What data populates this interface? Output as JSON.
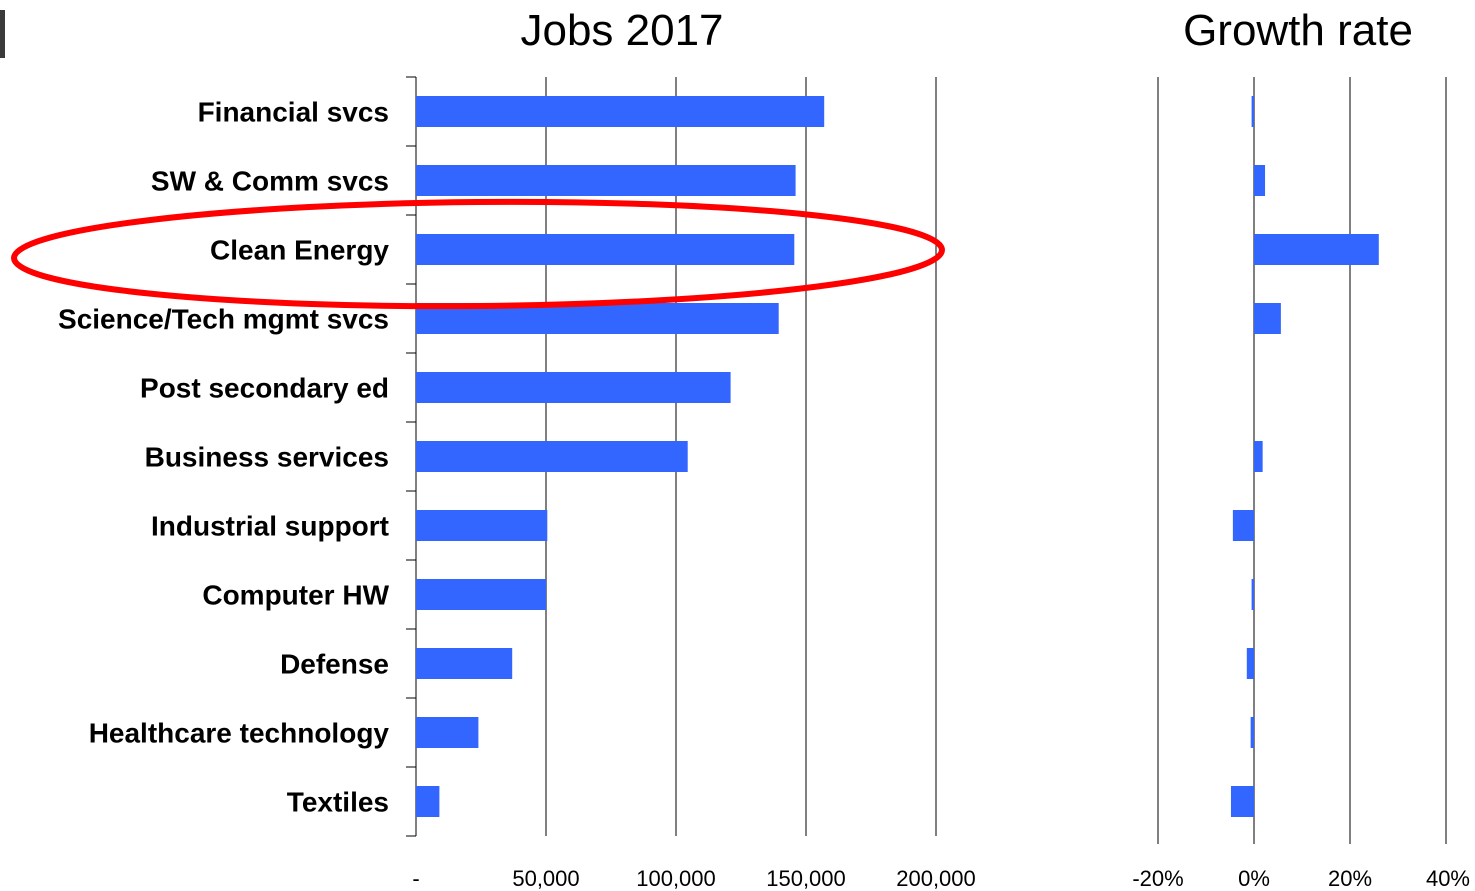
{
  "colors": {
    "bar": "#3366FF",
    "grid": "#000000",
    "highlight": "#FF0000",
    "corner_mark": "#3a3a3a"
  },
  "chart_data": [
    {
      "type": "bar",
      "orientation": "horizontal",
      "title": "Jobs 2017",
      "categories": [
        "Financial svcs",
        "SW & Comm svcs",
        "Clean Energy",
        "Science/Tech mgmt svcs",
        "Post secondary ed",
        "Business services",
        "Industrial support",
        "Computer HW",
        "Defense",
        "Healthcare technology",
        "Textiles"
      ],
      "values": [
        157000,
        146000,
        145500,
        139500,
        121000,
        104500,
        50500,
        50000,
        37000,
        24000,
        9000
      ],
      "xlim": [
        0,
        200000
      ],
      "xticks": [
        0,
        50000,
        100000,
        150000,
        200000
      ],
      "xtick_labels": [
        "-",
        "50,000",
        "100,000",
        "150,000",
        "200,000"
      ],
      "grid": "vertical",
      "highlighted_category": "Clean Energy"
    },
    {
      "type": "bar",
      "orientation": "horizontal",
      "title": "Growth rate",
      "categories": [
        "Financial svcs",
        "SW & Comm svcs",
        "Clean Energy",
        "Science/Tech mgmt svcs",
        "Post secondary ed",
        "Business services",
        "Industrial support",
        "Computer HW",
        "Defense",
        "Healthcare technology",
        "Textiles"
      ],
      "values": [
        -0.5,
        2.3,
        26,
        5.6,
        0,
        1.8,
        -4.4,
        -0.5,
        -1.5,
        -0.7,
        -4.8
      ],
      "xlim": [
        -20,
        40
      ],
      "xticks": [
        -20,
        0,
        20,
        40
      ],
      "xtick_labels": [
        "-20%",
        "0%",
        "20%",
        "40%"
      ],
      "grid": "vertical"
    }
  ]
}
